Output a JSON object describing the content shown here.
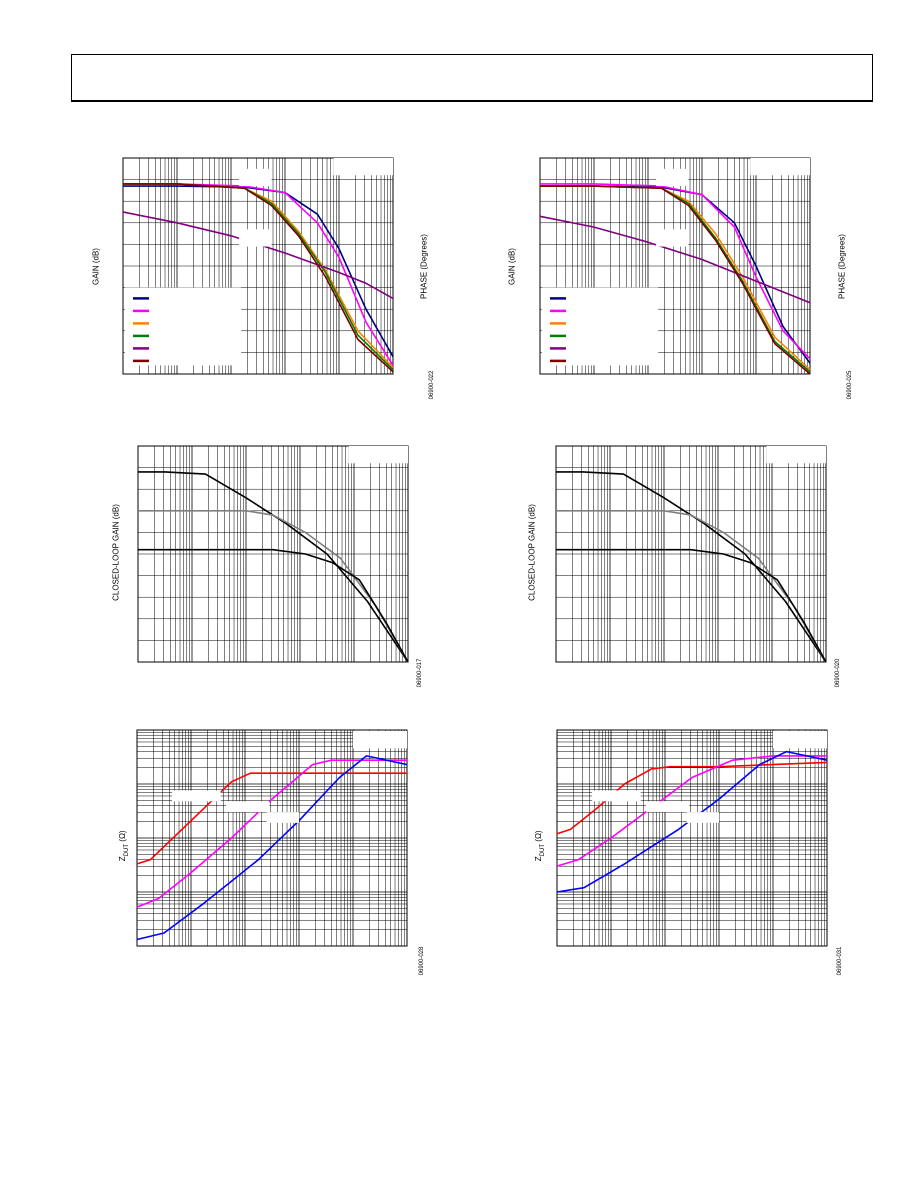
{
  "page": {
    "header_box_label": ""
  },
  "chart_data": [
    {
      "type": "line",
      "id": "gain-phase-a",
      "ylabel": "GAIN (dB)",
      "y2label": "PHASE (Degrees)",
      "figure_number": "06900-022",
      "legend_colors": [
        "#000080",
        "#ff00ff",
        "#ff8000",
        "#008000",
        "#800080",
        "#800000"
      ],
      "series": [
        {
          "color": "#000080",
          "x": [
            0,
            0.2,
            0.45,
            0.6,
            0.72,
            0.8,
            0.9,
            1.0
          ],
          "y": [
            0.13,
            0.13,
            0.135,
            0.16,
            0.26,
            0.42,
            0.7,
            0.92
          ]
        },
        {
          "color": "#ff00ff",
          "x": [
            0,
            0.2,
            0.45,
            0.6,
            0.72,
            0.8,
            0.9,
            1.0
          ],
          "y": [
            0.12,
            0.12,
            0.13,
            0.16,
            0.3,
            0.46,
            0.76,
            0.96
          ]
        },
        {
          "color": "#ff8000",
          "x": [
            0,
            0.2,
            0.45,
            0.55,
            0.65,
            0.75,
            0.87,
            1.0
          ],
          "y": [
            0.12,
            0.12,
            0.14,
            0.2,
            0.34,
            0.52,
            0.8,
            0.97
          ]
        },
        {
          "color": "#008000",
          "x": [
            0,
            0.2,
            0.45,
            0.55,
            0.65,
            0.75,
            0.87,
            1.0
          ],
          "y": [
            0.12,
            0.12,
            0.14,
            0.21,
            0.35,
            0.53,
            0.82,
            0.98
          ]
        },
        {
          "color": "#800080",
          "x": [
            0,
            0.2,
            0.4,
            0.6,
            0.8,
            0.9,
            1.0
          ],
          "y": [
            0.25,
            0.3,
            0.36,
            0.44,
            0.53,
            0.58,
            0.65
          ]
        },
        {
          "color": "#800000",
          "x": [
            0,
            0.2,
            0.45,
            0.55,
            0.65,
            0.75,
            0.87,
            1.0
          ],
          "y": [
            0.12,
            0.12,
            0.14,
            0.22,
            0.36,
            0.55,
            0.84,
            0.99
          ]
        }
      ]
    },
    {
      "type": "line",
      "id": "gain-phase-b",
      "ylabel": "GAIN (dB)",
      "y2label": "PHASE (Degrees)",
      "figure_number": "06900-025",
      "legend_colors": [
        "#000080",
        "#ff00ff",
        "#ff8000",
        "#008000",
        "#800080",
        "#800000"
      ],
      "series": [
        {
          "color": "#000080",
          "x": [
            0,
            0.2,
            0.45,
            0.6,
            0.72,
            0.8,
            0.9,
            1.0
          ],
          "y": [
            0.13,
            0.13,
            0.135,
            0.17,
            0.3,
            0.5,
            0.78,
            0.95
          ]
        },
        {
          "color": "#ff00ff",
          "x": [
            0,
            0.2,
            0.45,
            0.6,
            0.72,
            0.8,
            0.9,
            1.0
          ],
          "y": [
            0.12,
            0.12,
            0.13,
            0.17,
            0.32,
            0.55,
            0.8,
            0.93
          ]
        },
        {
          "color": "#ff8000",
          "x": [
            0,
            0.2,
            0.45,
            0.55,
            0.65,
            0.75,
            0.87,
            1.0
          ],
          "y": [
            0.13,
            0.13,
            0.14,
            0.2,
            0.35,
            0.55,
            0.83,
            0.98
          ]
        },
        {
          "color": "#008000",
          "x": [
            0,
            0.2,
            0.45,
            0.55,
            0.65,
            0.75,
            0.87,
            1.0
          ],
          "y": [
            0.13,
            0.13,
            0.14,
            0.21,
            0.37,
            0.57,
            0.85,
            0.99
          ]
        },
        {
          "color": "#800080",
          "x": [
            0,
            0.2,
            0.4,
            0.6,
            0.8,
            0.9,
            1.0
          ],
          "y": [
            0.27,
            0.32,
            0.39,
            0.47,
            0.57,
            0.62,
            0.67
          ]
        },
        {
          "color": "#800000",
          "x": [
            0,
            0.2,
            0.45,
            0.55,
            0.65,
            0.75,
            0.87,
            1.0
          ],
          "y": [
            0.13,
            0.13,
            0.14,
            0.22,
            0.38,
            0.58,
            0.86,
            1.0
          ]
        }
      ]
    },
    {
      "type": "line",
      "id": "closed-loop-a",
      "ylabel": "CLOSED-LOOP GAIN (dB)",
      "figure_number": "06900-017",
      "series": [
        {
          "color": "#000000",
          "x": [
            0,
            0.1,
            0.25,
            0.4,
            0.55,
            0.7,
            0.85,
            1.0
          ],
          "y": [
            0.12,
            0.12,
            0.13,
            0.24,
            0.36,
            0.5,
            0.72,
            1.0
          ]
        },
        {
          "color": "#808080",
          "x": [
            0,
            0.2,
            0.4,
            0.5,
            0.62,
            0.75,
            0.88,
            1.0
          ],
          "y": [
            0.3,
            0.3,
            0.3,
            0.32,
            0.4,
            0.52,
            0.74,
            1.0
          ]
        },
        {
          "color": "#000000",
          "x": [
            0,
            0.2,
            0.5,
            0.62,
            0.72,
            0.82,
            0.92,
            1.0
          ],
          "y": [
            0.48,
            0.48,
            0.48,
            0.5,
            0.54,
            0.62,
            0.82,
            1.0
          ]
        }
      ]
    },
    {
      "type": "line",
      "id": "closed-loop-b",
      "ylabel": "CLOSED-LOOP GAIN (dB)",
      "figure_number": "06900-020",
      "series": [
        {
          "color": "#000000",
          "x": [
            0,
            0.1,
            0.25,
            0.4,
            0.55,
            0.7,
            0.85,
            1.0
          ],
          "y": [
            0.12,
            0.12,
            0.13,
            0.24,
            0.36,
            0.5,
            0.72,
            1.0
          ]
        },
        {
          "color": "#808080",
          "x": [
            0,
            0.2,
            0.4,
            0.5,
            0.62,
            0.75,
            0.88,
            1.0
          ],
          "y": [
            0.3,
            0.3,
            0.3,
            0.32,
            0.4,
            0.52,
            0.74,
            1.0
          ]
        },
        {
          "color": "#000000",
          "x": [
            0,
            0.2,
            0.5,
            0.62,
            0.72,
            0.82,
            0.92,
            1.0
          ],
          "y": [
            0.48,
            0.48,
            0.48,
            0.5,
            0.54,
            0.62,
            0.82,
            1.0
          ]
        }
      ]
    },
    {
      "type": "line",
      "id": "zdut-a",
      "ylabel": "Z",
      "ylabel_sub": "DUT",
      "ylabel_unit": "(Ω)",
      "figure_number": "06900-028",
      "series": [
        {
          "color": "#ff0000",
          "x": [
            0,
            0.05,
            0.15,
            0.25,
            0.35,
            0.42,
            0.6,
            1.0
          ],
          "y": [
            0.62,
            0.6,
            0.48,
            0.36,
            0.24,
            0.2,
            0.2,
            0.2
          ]
        },
        {
          "color": "#ff00ff",
          "x": [
            0,
            0.08,
            0.2,
            0.35,
            0.5,
            0.65,
            0.72,
            1.0
          ],
          "y": [
            0.82,
            0.78,
            0.66,
            0.5,
            0.32,
            0.16,
            0.14,
            0.14
          ]
        },
        {
          "color": "#0000ff",
          "x": [
            0,
            0.1,
            0.25,
            0.45,
            0.6,
            0.75,
            0.85,
            1.0
          ],
          "y": [
            0.97,
            0.94,
            0.8,
            0.6,
            0.42,
            0.22,
            0.12,
            0.16
          ]
        }
      ]
    },
    {
      "type": "line",
      "id": "zdut-b",
      "ylabel": "Z",
      "ylabel_sub": "DUT",
      "ylabel_unit": "(Ω)",
      "figure_number": "06900-031",
      "series": [
        {
          "color": "#ff0000",
          "x": [
            0,
            0.05,
            0.15,
            0.25,
            0.35,
            0.42,
            0.6,
            1.0
          ],
          "y": [
            0.48,
            0.46,
            0.36,
            0.25,
            0.18,
            0.17,
            0.17,
            0.15
          ]
        },
        {
          "color": "#ff00ff",
          "x": [
            0,
            0.08,
            0.2,
            0.35,
            0.5,
            0.65,
            0.8,
            1.0
          ],
          "y": [
            0.63,
            0.6,
            0.5,
            0.36,
            0.22,
            0.14,
            0.12,
            0.12
          ]
        },
        {
          "color": "#0000ff",
          "x": [
            0,
            0.1,
            0.25,
            0.45,
            0.6,
            0.75,
            0.85,
            1.0
          ],
          "y": [
            0.75,
            0.73,
            0.62,
            0.46,
            0.32,
            0.16,
            0.1,
            0.14
          ]
        }
      ]
    }
  ]
}
